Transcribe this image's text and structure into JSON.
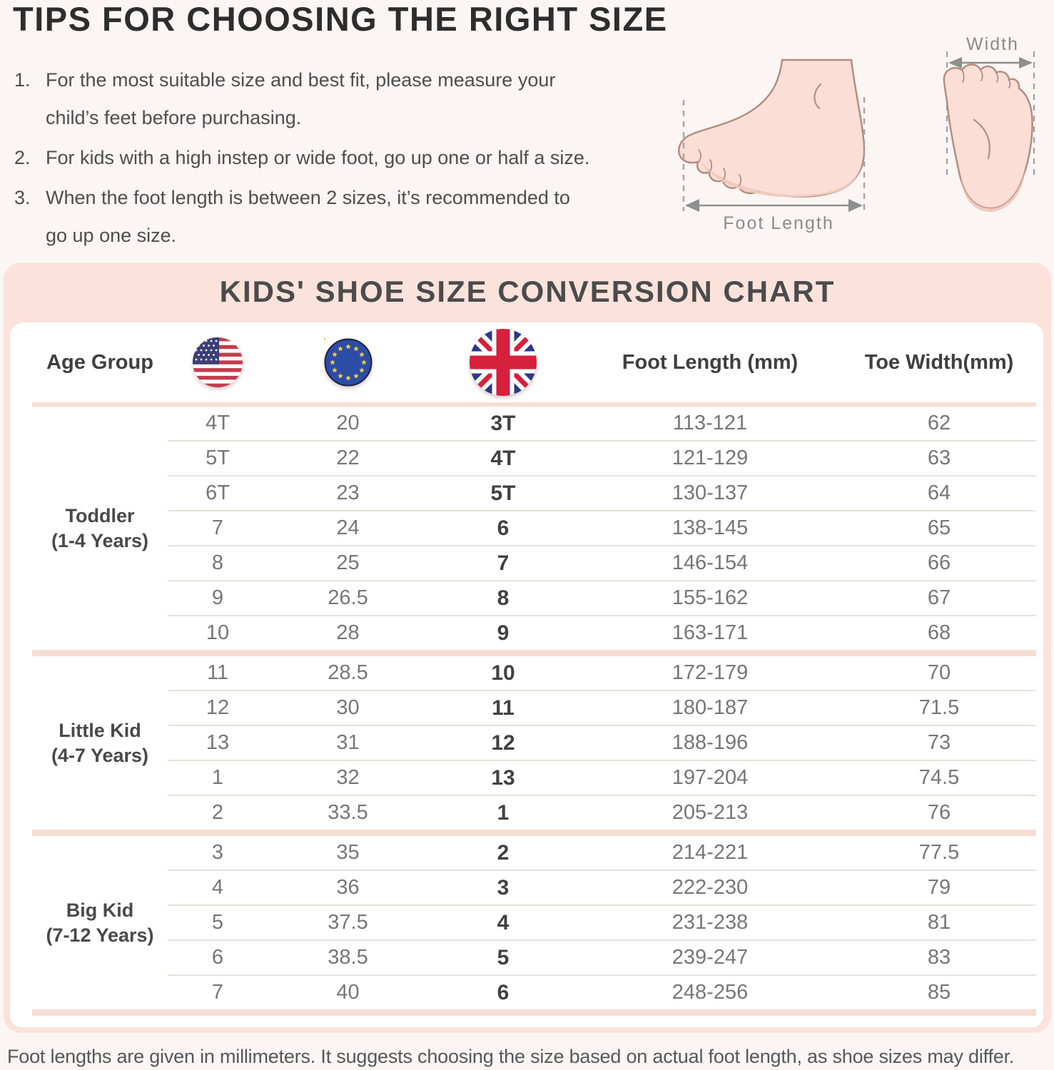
{
  "tips_section": {
    "title": "TIPS FOR CHOOSING THE RIGHT SIZE",
    "tips": [
      {
        "num": "1.",
        "lines": [
          "For the most suitable size and best fit, please measure your",
          "child’s feet before purchasing."
        ]
      },
      {
        "num": "2.",
        "lines": [
          "For kids with a high instep or wide foot, go up one or half a size."
        ]
      },
      {
        "num": "3.",
        "lines": [
          "When the foot length is between 2 sizes, it’s recommended to",
          "go up one size."
        ]
      }
    ]
  },
  "diagram": {
    "foot_length_label": "Foot  Length",
    "width_label": "Width"
  },
  "chart": {
    "title": "KIDS' SHOE SIZE CONVERSION CHART",
    "columns": {
      "age_group": "Age Group",
      "us_flag": "us-flag-icon",
      "eu_flag": "eu-flag-icon",
      "uk_flag": "uk-flag-icon",
      "foot_length": "Foot Length (mm)",
      "toe_width": "Toe Width(mm)"
    },
    "groups": [
      {
        "label": "Toddler",
        "age_range": "(1-4 Years)",
        "rows": [
          [
            "4T",
            "20",
            "3T",
            "113-121",
            "62"
          ],
          [
            "5T",
            "22",
            "4T",
            "121-129",
            "63"
          ],
          [
            "6T",
            "23",
            "5T",
            "130-137",
            "64"
          ],
          [
            "7",
            "24",
            "6",
            "138-145",
            "65"
          ],
          [
            "8",
            "25",
            "7",
            "146-154",
            "66"
          ],
          [
            "9",
            "26.5",
            "8",
            "155-162",
            "67"
          ],
          [
            "10",
            "28",
            "9",
            "163-171",
            "68"
          ]
        ]
      },
      {
        "label": "Little Kid",
        "age_range": "(4-7 Years)",
        "rows": [
          [
            "11",
            "28.5",
            "10",
            "172-179",
            "70"
          ],
          [
            "12",
            "30",
            "11",
            "180-187",
            "71.5"
          ],
          [
            "13",
            "31",
            "12",
            "188-196",
            "73"
          ],
          [
            "1",
            "32",
            "13",
            "197-204",
            "74.5"
          ],
          [
            "2",
            "33.5",
            "1",
            "205-213",
            "76"
          ]
        ]
      },
      {
        "label": "Big Kid",
        "age_range": "(7-12 Years)",
        "rows": [
          [
            "3",
            "35",
            "2",
            "214-221",
            "77.5"
          ],
          [
            "4",
            "36",
            "3",
            "222-230",
            "79"
          ],
          [
            "5",
            "37.5",
            "4",
            "231-238",
            "81"
          ],
          [
            "6",
            "38.5",
            "5",
            "239-247",
            "83"
          ],
          [
            "7",
            "40",
            "6",
            "248-256",
            "85"
          ]
        ]
      }
    ]
  },
  "footnote": "Foot lengths are given in millimeters. It suggests choosing the size based on actual foot length, as shoe sizes may differ.",
  "colors": {
    "page_bg": "#fbf6f3",
    "panel_pink": "#fbe3db",
    "separator_pink": "#f7ddd2",
    "row_line": "#e7e3da",
    "title_dark": "#2d2d2d",
    "text_gray": "#767676",
    "foot_fill": "#fbded5",
    "foot_outline": "#b38e82"
  }
}
